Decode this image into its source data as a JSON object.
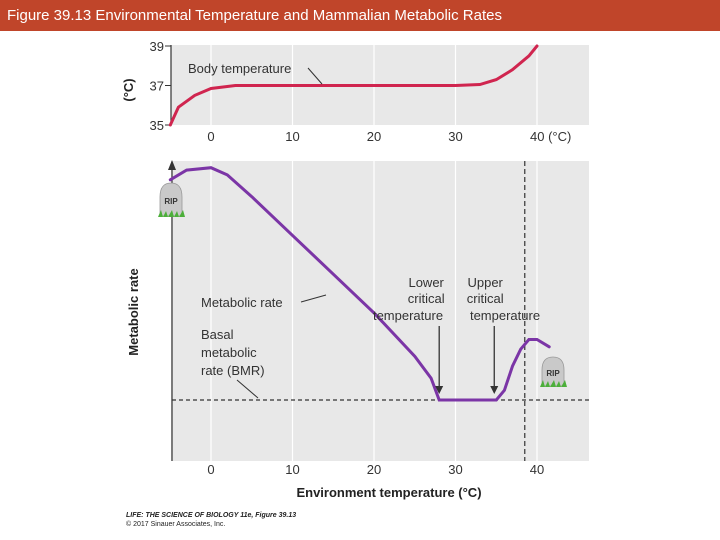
{
  "header": {
    "title": "Figure 39.13 Environmental Temperature and Mammalian Metabolic Rates"
  },
  "colors": {
    "header_bg": "#c0452a",
    "body_temp_line": "#d0254f",
    "metabolic_line": "#7b35a6",
    "panel_bg": "#e8e8e8",
    "tombstone": "#c9c9c9",
    "grass": "#4caf3a"
  },
  "credit": {
    "line1": "LIFE: THE SCIENCE OF BIOLOGY 11e, Figure 39.13",
    "line2": "© 2017 Sinauer Associates, Inc."
  },
  "chart_data": [
    {
      "type": "line",
      "title": "Body temperature",
      "ylabel": "(°C)",
      "xlim": [
        -5,
        45
      ],
      "ylim": [
        35,
        39
      ],
      "x_ticks": [
        0,
        10,
        20,
        30,
        40
      ],
      "x_tick_labels": [
        "0",
        "10",
        "20",
        "30",
        "40 (°C)"
      ],
      "y_ticks": [
        39,
        37,
        35
      ],
      "y_tick_labels": [
        "39",
        "37",
        "35"
      ],
      "annotation": "Body temperature",
      "series": [
        {
          "name": "Body temperature",
          "x": [
            -5,
            -4,
            -2,
            0,
            3,
            10,
            20,
            30,
            33,
            35,
            37,
            39,
            40
          ],
          "y": [
            35.0,
            35.9,
            36.5,
            36.85,
            37.0,
            37.0,
            37.0,
            37.0,
            37.05,
            37.3,
            37.8,
            38.5,
            39.0
          ]
        }
      ]
    },
    {
      "type": "line",
      "title": "Metabolic rate",
      "xlabel": "Environment temperature (°C)",
      "ylabel": "Metabolic rate",
      "xlim": [
        -5,
        45
      ],
      "x_ticks": [
        0,
        10,
        20,
        30,
        40
      ],
      "x_tick_labels": [
        "0",
        "10",
        "20",
        "30",
        "40"
      ],
      "y_values_relative_to_BMR": true,
      "lower_critical_temperature": 28,
      "upper_critical_temperature": 35,
      "lethal_upper_temperature": 38.5,
      "annotations": {
        "metabolic_rate": "Metabolic rate",
        "bmr": "Basal metabolic rate (BMR)",
        "lower_critical": "Lower critical temperature",
        "upper_critical": "Upper critical temperature",
        "tombstone": "RIP"
      },
      "series": [
        {
          "name": "Metabolic rate",
          "x": [
            -5,
            -3,
            0,
            2,
            5,
            10,
            15,
            20,
            25,
            27,
            28,
            30,
            35,
            36,
            37,
            38,
            39,
            40,
            41.5
          ],
          "y": [
            9.1,
            9.5,
            9.6,
            9.3,
            8.4,
            6.8,
            5.2,
            3.6,
            1.8,
            0.9,
            0.0,
            0.0,
            0.0,
            0.4,
            1.4,
            2.1,
            2.5,
            2.5,
            2.2
          ]
        },
        {
          "name": "Basal metabolic rate (BMR)",
          "x": [
            -5,
            45
          ],
          "y": [
            0,
            0
          ]
        }
      ]
    }
  ]
}
